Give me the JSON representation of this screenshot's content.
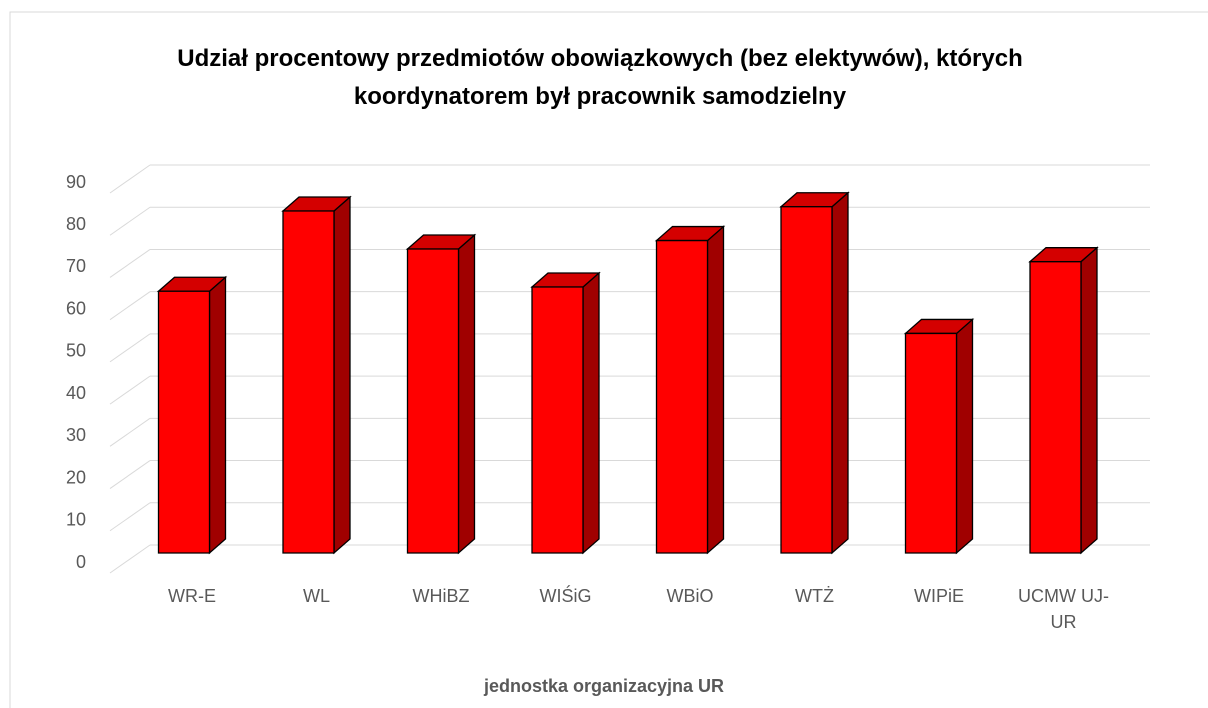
{
  "chart_data": {
    "type": "bar3d",
    "title": "Udział procentowy przedmiotów obowiązkowych (bez elektywów), których koordynatorem był pracownik samodzielny",
    "x_label": "jednostka organizacyjna UR",
    "categories": [
      "WR-E",
      "WL",
      "WHiBZ",
      "WIŚiG",
      "WBiO",
      "WTŻ",
      "WIPiE",
      "UCMW UJ-UR"
    ],
    "values": [
      62,
      81,
      72,
      63,
      74,
      82,
      52,
      69
    ],
    "color": "#ff0000",
    "ylim": [
      0,
      90
    ],
    "yticks": [
      0,
      10,
      20,
      30,
      40,
      50,
      60,
      70,
      80,
      90
    ],
    "grid": true
  }
}
